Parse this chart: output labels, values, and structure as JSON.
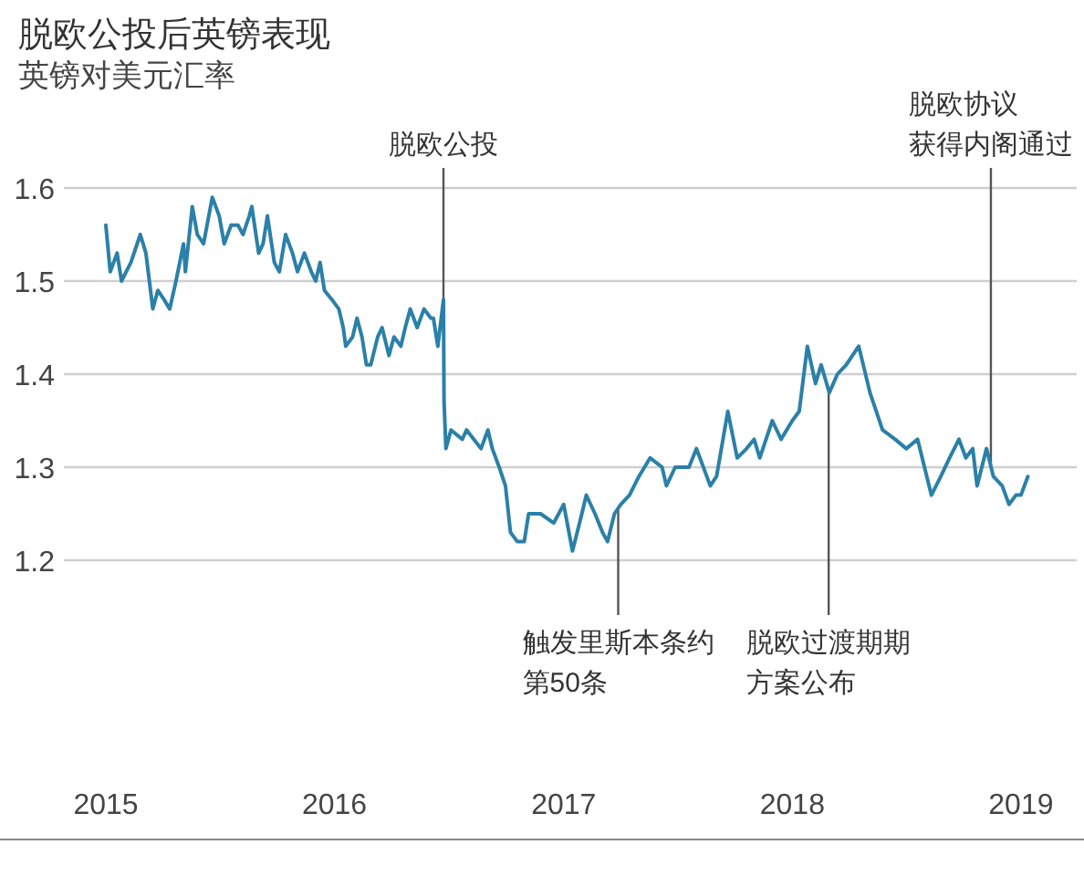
{
  "chart_data": {
    "type": "line",
    "title": "脱欧公投后英镑表现",
    "subtitle": "英镑对美元汇率",
    "x": [
      "2015-01-01",
      "2015-01-08",
      "2015-01-19",
      "2015-01-26",
      "2015-02-10",
      "2015-02-25",
      "2015-03-06",
      "2015-03-17",
      "2015-03-25",
      "2015-04-04",
      "2015-04-13",
      "2015-04-23",
      "2015-05-05",
      "2015-05-08",
      "2015-05-19",
      "2015-05-27",
      "2015-06-06",
      "2015-06-20",
      "2015-07-01",
      "2015-07-09",
      "2015-07-20",
      "2015-07-31",
      "2015-08-08",
      "2015-08-18",
      "2015-08-22",
      "2015-09-02",
      "2015-09-09",
      "2015-09-16",
      "2015-09-27",
      "2015-10-05",
      "2015-10-15",
      "2015-10-26",
      "2015-11-03",
      "2015-11-14",
      "2015-11-25",
      "2015-12-02",
      "2015-12-09",
      "2015-12-16",
      "2015-12-28",
      "2016-01-08",
      "2016-01-15",
      "2016-01-19",
      "2016-01-30",
      "2016-02-06",
      "2016-02-14",
      "2016-02-21",
      "2016-02-28",
      "2016-03-10",
      "2016-03-17",
      "2016-03-28",
      "2016-04-05",
      "2016-04-16",
      "2016-04-23",
      "2016-05-01",
      "2016-05-12",
      "2016-05-23",
      "2016-06-03",
      "2016-06-07",
      "2016-06-14",
      "2016-06-23",
      "2016-06-24",
      "2016-06-27",
      "2016-07-05",
      "2016-07-23",
      "2016-07-30",
      "2016-08-22",
      "2016-09-02",
      "2016-09-09",
      "2016-09-20",
      "2016-09-30",
      "2016-10-08",
      "2016-10-19",
      "2016-10-30",
      "2016-11-06",
      "2016-11-17",
      "2016-11-25",
      "2016-12-16",
      "2017-01-01",
      "2017-01-15",
      "2017-01-30",
      "2017-02-06",
      "2017-02-20",
      "2017-03-04",
      "2017-03-12",
      "2017-03-23",
      "2017-04-02",
      "2017-04-16",
      "2017-05-01",
      "2017-05-19",
      "2017-06-07",
      "2017-06-14",
      "2017-06-28",
      "2017-07-20",
      "2017-08-01",
      "2017-08-23",
      "2017-09-02",
      "2017-09-20",
      "2017-10-05",
      "2017-10-20",
      "2017-11-01",
      "2017-11-10",
      "2017-11-30",
      "2017-12-14",
      "2018-01-01",
      "2018-01-12",
      "2018-01-25",
      "2018-02-07",
      "2018-02-16",
      "2018-03-01",
      "2018-03-14",
      "2018-03-28",
      "2018-04-17",
      "2018-05-05",
      "2018-05-25",
      "2018-06-14",
      "2018-07-02",
      "2018-07-20",
      "2018-08-11",
      "2018-08-26",
      "2018-09-09",
      "2018-09-24",
      "2018-10-05",
      "2018-10-16",
      "2018-10-23",
      "2018-11-07",
      "2018-11-18",
      "2018-12-02",
      "2018-12-13",
      "2018-12-24",
      "2019-01-01",
      "2019-01-12"
    ],
    "series": [
      {
        "color": "#2b80a8",
        "values": [
          1.56,
          1.51,
          1.53,
          1.5,
          1.52,
          1.55,
          1.53,
          1.47,
          1.49,
          1.48,
          1.47,
          1.5,
          1.54,
          1.51,
          1.58,
          1.55,
          1.54,
          1.59,
          1.57,
          1.54,
          1.56,
          1.56,
          1.55,
          1.57,
          1.58,
          1.53,
          1.54,
          1.57,
          1.52,
          1.51,
          1.55,
          1.53,
          1.51,
          1.53,
          1.51,
          1.5,
          1.52,
          1.49,
          1.48,
          1.47,
          1.45,
          1.43,
          1.44,
          1.46,
          1.44,
          1.41,
          1.41,
          1.44,
          1.45,
          1.42,
          1.44,
          1.43,
          1.45,
          1.47,
          1.45,
          1.47,
          1.46,
          1.46,
          1.43,
          1.48,
          1.37,
          1.32,
          1.34,
          1.33,
          1.34,
          1.32,
          1.34,
          1.32,
          1.3,
          1.28,
          1.23,
          1.22,
          1.22,
          1.25,
          1.25,
          1.25,
          1.24,
          1.26,
          1.21,
          1.25,
          1.27,
          1.25,
          1.23,
          1.22,
          1.25,
          1.26,
          1.27,
          1.29,
          1.31,
          1.3,
          1.28,
          1.3,
          1.3,
          1.32,
          1.28,
          1.29,
          1.36,
          1.31,
          1.32,
          1.33,
          1.31,
          1.35,
          1.33,
          1.35,
          1.36,
          1.43,
          1.39,
          1.41,
          1.38,
          1.4,
          1.41,
          1.43,
          1.38,
          1.34,
          1.33,
          1.32,
          1.33,
          1.27,
          1.29,
          1.31,
          1.33,
          1.31,
          1.32,
          1.28,
          1.32,
          1.29,
          1.28,
          1.26,
          1.27,
          1.27,
          1.29
        ]
      }
    ],
    "xlim": [
      "2014-10-26",
      "2019-03-31"
    ],
    "xticks": [
      {
        "value": "2015-01-01",
        "label": "2015"
      },
      {
        "value": "2016-01-01",
        "label": "2016"
      },
      {
        "value": "2017-01-01",
        "label": "2017"
      },
      {
        "value": "2018-01-01",
        "label": "2018"
      },
      {
        "value": "2019-01-01",
        "label": "2019"
      }
    ],
    "ylim": [
      0.9,
      1.6
    ],
    "yticks": [
      1.2,
      1.3,
      1.4,
      1.5,
      1.6
    ],
    "grid": "y",
    "ref_lines": [
      {
        "axis": "x",
        "value": "2016-06-23",
        "label": "脱欧公投",
        "color": "#555555"
      },
      {
        "axis": "x",
        "value": "2017-03-29",
        "label": "触发里斯本条约第50条",
        "color": "#555555"
      },
      {
        "axis": "x",
        "value": "2018-02-28",
        "label": "脱欧过渡期期方案公布",
        "color": "#555555"
      },
      {
        "axis": "x",
        "value": "2018-11-14",
        "label": "脱欧协议获得内阁通过",
        "color": "#555555"
      }
    ]
  }
}
